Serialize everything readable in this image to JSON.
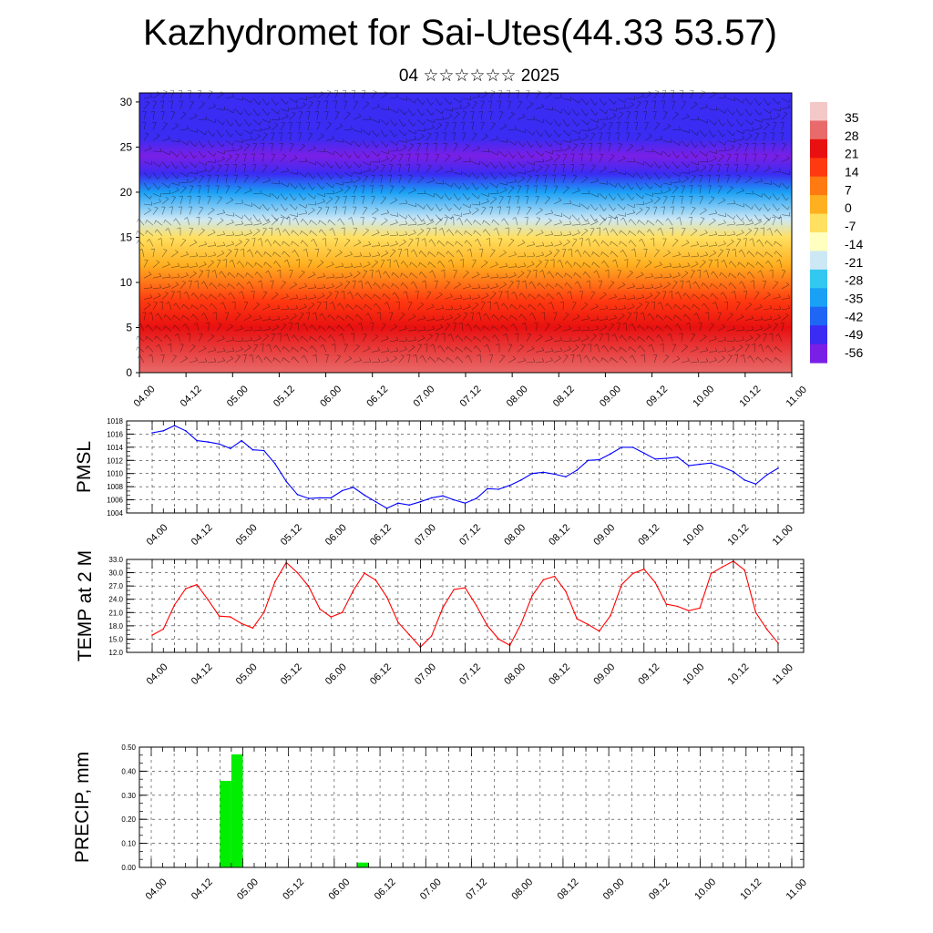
{
  "header": {
    "title": "Kazhydromet for Sai-Utes(44.33 53.57)",
    "subtitle": "04 ☆☆☆☆☆☆ 2025"
  },
  "chart_data": [
    {
      "type": "heatmap",
      "title": "",
      "xlabel": "",
      "ylabel": "",
      "x_ticks": [
        "04.00",
        "04.12",
        "05.00",
        "05.12",
        "06.00",
        "06.12",
        "07.00",
        "07.12",
        "08.00",
        "08.12",
        "09.00",
        "09.12",
        "10.00",
        "10.12",
        "11.00"
      ],
      "y_ticks": [
        0,
        5,
        10,
        15,
        20,
        25,
        30
      ],
      "xlim": [
        0,
        168
      ],
      "ylim": [
        0,
        31
      ],
      "colorbar": {
        "labels": [
          35,
          28,
          21,
          14,
          7,
          0,
          -7,
          -14,
          -21,
          -28,
          -35,
          -42,
          -49,
          -56
        ],
        "range": [
          -60,
          40
        ],
        "colors": [
          "#7a1fe6",
          "#3a2cf2",
          "#1f66f5",
          "#1aa0f5",
          "#33c8f0",
          "#cde8f5",
          "#ffffc0",
          "#ffe060",
          "#ffb020",
          "#ff7a10",
          "#ff3a10",
          "#e81010",
          "#e86a6a",
          "#f5c8c8"
        ]
      },
      "temperature_profile": [
        {
          "level": 0,
          "value": 30
        },
        {
          "level": 5,
          "value": 24
        },
        {
          "level": 8,
          "value": 14
        },
        {
          "level": 12,
          "value": 3
        },
        {
          "level": 15,
          "value": -9
        },
        {
          "level": 17,
          "value": -20
        },
        {
          "level": 20,
          "value": -40
        },
        {
          "level": 22,
          "value": -52
        },
        {
          "level": 24,
          "value": -58
        },
        {
          "level": 26,
          "value": -56
        },
        {
          "level": 28,
          "value": -55
        },
        {
          "level": 31,
          "value": -55
        }
      ],
      "overlay": "wind barbs"
    },
    {
      "type": "line",
      "ylabel": "PMSL",
      "xlim": [
        0,
        168
      ],
      "ylim": [
        1004,
        1018
      ],
      "y_ticks": [
        1004,
        1006,
        1008,
        1010,
        1012,
        1014,
        1016,
        1018
      ],
      "x_ticks": [
        "04.00",
        "04.12",
        "05.00",
        "05.12",
        "06.00",
        "06.12",
        "07.00",
        "07.12",
        "08.00",
        "08.12",
        "09.00",
        "09.12",
        "10.00",
        "10.12",
        "11.00"
      ],
      "grid": true,
      "color": "#0000ff",
      "series": [
        {
          "x": [
            0,
            3,
            6,
            9,
            12,
            15,
            18,
            21,
            24,
            27,
            30,
            33,
            36,
            39,
            42,
            45,
            48,
            51,
            54,
            57,
            60,
            63,
            66,
            69,
            72,
            75,
            78,
            81,
            84,
            87,
            90,
            93,
            96,
            99,
            102,
            105,
            108,
            111,
            114,
            117,
            120,
            123,
            126,
            129,
            132,
            135,
            138,
            141,
            144,
            147,
            150,
            153,
            156,
            159,
            162,
            165,
            168
          ],
          "y": [
            1016.2,
            1016.5,
            1017.3,
            1016.5,
            1015.0,
            1014.8,
            1014.5,
            1013.8,
            1015.0,
            1013.6,
            1013.5,
            1011.5,
            1008.8,
            1006.8,
            1006.2,
            1006.3,
            1006.3,
            1007.4,
            1007.9,
            1006.7,
            1005.7,
            1004.7,
            1005.5,
            1005.2,
            1005.7,
            1006.3,
            1006.6,
            1006.0,
            1005.5,
            1006.2,
            1007.7,
            1007.6,
            1008.2,
            1009.0,
            1010.0,
            1010.2,
            1009.9,
            1009.5,
            1010.5,
            1012.0,
            1012.1,
            1013.0,
            1014.0,
            1014.0,
            1013.1,
            1012.2,
            1012.3,
            1012.5,
            1011.2,
            1011.4,
            1011.6,
            1011.0,
            1010.3,
            1009.0,
            1008.4,
            1009.8,
            1010.8
          ]
        }
      ]
    },
    {
      "type": "line",
      "ylabel": "TEMP at 2 M",
      "xlim": [
        0,
        168
      ],
      "ylim": [
        12.0,
        33.0
      ],
      "y_ticks": [
        "12.0",
        "15.0",
        "18.0",
        "21.0",
        "24.0",
        "27.0",
        "30.0",
        "33.0"
      ],
      "x_ticks": [
        "04.00",
        "04.12",
        "05.00",
        "05.12",
        "06.00",
        "06.12",
        "07.00",
        "07.12",
        "08.00",
        "08.12",
        "09.00",
        "09.12",
        "10.00",
        "10.12",
        "11.00"
      ],
      "grid": true,
      "color": "#ff0000",
      "series": [
        {
          "x": [
            0,
            3,
            6,
            9,
            12,
            15,
            18,
            21,
            24,
            27,
            30,
            33,
            36,
            39,
            42,
            45,
            48,
            51,
            54,
            57,
            60,
            63,
            66,
            69,
            72,
            75,
            78,
            81,
            84,
            87,
            90,
            93,
            96,
            99,
            102,
            105,
            108,
            111,
            114,
            117,
            120,
            123,
            126,
            129,
            132,
            135,
            138,
            141,
            144,
            147,
            150,
            153,
            156,
            159,
            162,
            165,
            168
          ],
          "y": [
            15.9,
            17.3,
            22.7,
            26.4,
            27.3,
            23.9,
            20.2,
            20.0,
            18.5,
            17.5,
            21.0,
            28.0,
            32.3,
            30.0,
            26.9,
            21.8,
            20.0,
            21.0,
            26.0,
            29.9,
            28.3,
            24.5,
            18.8,
            16.0,
            13.2,
            15.7,
            22.1,
            26.2,
            26.6,
            22.6,
            18.0,
            15.0,
            13.6,
            18.4,
            24.8,
            28.4,
            29.2,
            25.8,
            19.6,
            18.3,
            16.8,
            20.3,
            27.3,
            29.8,
            30.8,
            27.8,
            22.9,
            22.4,
            21.4,
            22.0,
            29.8,
            31.3,
            32.6,
            30.6,
            21.0,
            17.2,
            14.1
          ]
        }
      ]
    },
    {
      "type": "bar",
      "ylabel": "PRECIP, mm",
      "xlim": [
        0,
        168
      ],
      "ylim": [
        0,
        0.5
      ],
      "y_ticks": [
        "0.00",
        "0.10",
        "0.20",
        "0.30",
        "0.40",
        "0.50"
      ],
      "x_ticks": [
        "04.00",
        "04.12",
        "05.00",
        "05.12",
        "06.00",
        "06.12",
        "07.00",
        "07.12",
        "08.00",
        "08.12",
        "09.00",
        "09.12",
        "10.00",
        "10.12",
        "11.00"
      ],
      "grid": true,
      "color": "#00ee00",
      "series": [
        {
          "x": [
            21,
            24,
            57
          ],
          "values": [
            0.36,
            0.47,
            0.02
          ]
        }
      ]
    }
  ]
}
